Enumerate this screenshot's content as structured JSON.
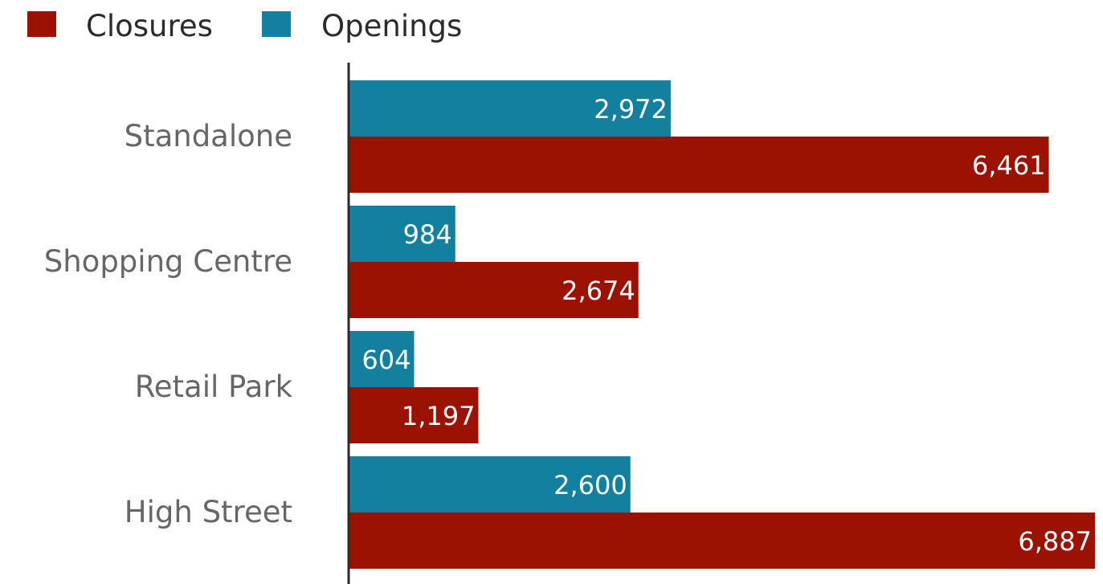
{
  "chart_data": {
    "type": "bar",
    "orientation": "horizontal",
    "categories": [
      "Standalone",
      "Shopping Centre",
      "Retail Park",
      "High Street"
    ],
    "series": [
      {
        "name": "Openings",
        "color": "#13809f",
        "values": [
          2972,
          984,
          604,
          2600
        ],
        "labels": [
          "2,972",
          "984",
          "604",
          "2,600"
        ]
      },
      {
        "name": "Closures",
        "color": "#9b1200",
        "values": [
          6461,
          2674,
          1197,
          6887
        ],
        "labels": [
          "6,461",
          "2,674",
          "1,197",
          "6,887"
        ]
      }
    ],
    "legend": {
      "placement": "top-left",
      "order": [
        "Closures",
        "Openings"
      ]
    },
    "xlim": [
      0,
      6887
    ],
    "grid": false,
    "title": "",
    "xlabel": "",
    "ylabel": ""
  }
}
